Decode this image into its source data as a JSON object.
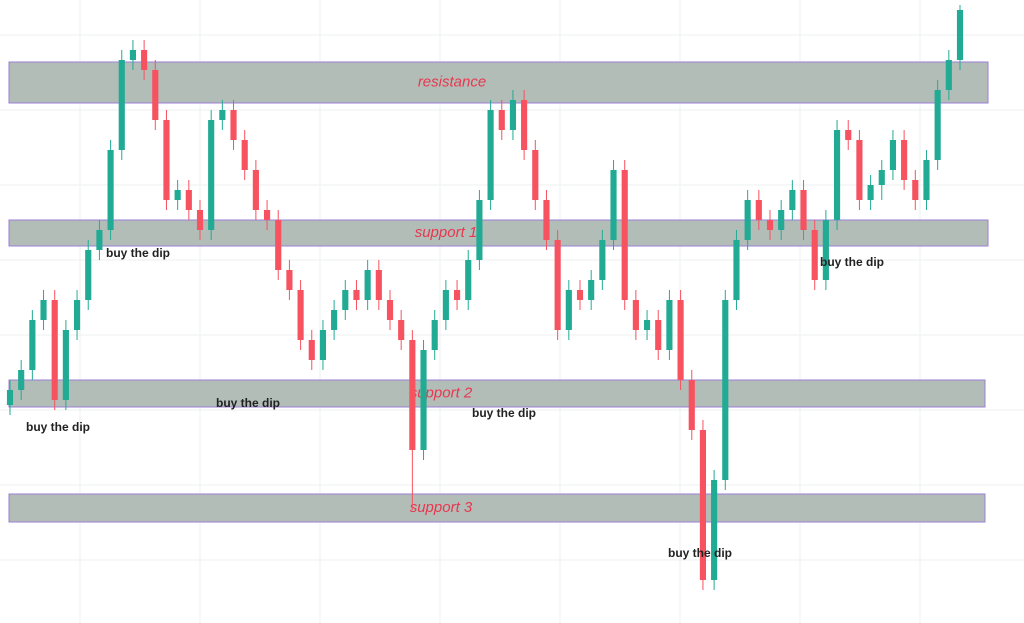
{
  "chart_data": {
    "type": "candlestick",
    "up_color": "#22ab94",
    "down_color": "#f7525f",
    "zone_color": "#b2bdb8",
    "zone_border": "#9c7fd6",
    "label_color": "#e8384f",
    "ylim": [
      0,
      620
    ],
    "open": [
      215,
      230,
      250,
      300,
      320,
      220,
      290,
      320,
      370,
      390,
      470,
      560,
      570,
      550,
      500,
      420,
      430,
      410,
      390,
      500,
      510,
      480,
      450,
      410,
      400,
      350,
      330,
      280,
      260,
      290,
      310,
      330,
      320,
      350,
      320,
      300,
      280,
      170,
      270,
      300,
      330,
      320,
      360,
      420,
      510,
      490,
      520,
      470,
      420,
      380,
      290,
      330,
      320,
      340,
      380,
      450,
      320,
      290,
      300,
      270,
      320,
      240,
      190,
      40,
      140,
      320,
      380,
      420,
      400,
      390,
      410,
      430,
      390,
      340,
      400,
      490,
      480,
      420,
      435,
      450,
      480,
      440,
      420,
      460,
      530,
      560
    ],
    "high": [
      240,
      260,
      310,
      330,
      330,
      300,
      330,
      380,
      400,
      480,
      570,
      580,
      580,
      560,
      510,
      440,
      440,
      420,
      510,
      520,
      520,
      490,
      460,
      420,
      410,
      360,
      340,
      290,
      300,
      320,
      340,
      340,
      360,
      360,
      330,
      310,
      290,
      280,
      310,
      340,
      340,
      370,
      430,
      520,
      520,
      530,
      530,
      480,
      430,
      390,
      340,
      340,
      350,
      390,
      460,
      460,
      330,
      310,
      310,
      330,
      330,
      250,
      200,
      150,
      330,
      390,
      430,
      430,
      410,
      420,
      440,
      440,
      400,
      410,
      500,
      500,
      490,
      445,
      460,
      490,
      490,
      450,
      470,
      540,
      570,
      615
    ],
    "low": [
      205,
      220,
      240,
      290,
      210,
      210,
      280,
      310,
      360,
      380,
      460,
      550,
      540,
      490,
      410,
      410,
      400,
      380,
      380,
      490,
      470,
      440,
      400,
      390,
      340,
      320,
      270,
      250,
      250,
      280,
      300,
      310,
      310,
      310,
      290,
      270,
      110,
      160,
      260,
      290,
      310,
      310,
      350,
      410,
      480,
      480,
      460,
      410,
      370,
      280,
      280,
      310,
      310,
      330,
      370,
      310,
      280,
      280,
      260,
      260,
      230,
      180,
      30,
      30,
      130,
      310,
      370,
      390,
      380,
      380,
      400,
      380,
      330,
      330,
      390,
      470,
      410,
      410,
      420,
      440,
      430,
      410,
      410,
      450,
      520,
      550
    ],
    "close": [
      230,
      250,
      300,
      320,
      220,
      290,
      320,
      370,
      390,
      470,
      560,
      570,
      550,
      500,
      420,
      430,
      410,
      390,
      500,
      510,
      480,
      450,
      410,
      400,
      350,
      330,
      280,
      260,
      290,
      310,
      330,
      320,
      350,
      320,
      300,
      280,
      170,
      270,
      300,
      330,
      320,
      360,
      420,
      510,
      490,
      520,
      470,
      420,
      380,
      290,
      330,
      320,
      340,
      380,
      450,
      320,
      290,
      300,
      270,
      320,
      240,
      190,
      40,
      140,
      320,
      380,
      420,
      400,
      390,
      410,
      430,
      390,
      340,
      400,
      490,
      480,
      420,
      435,
      450,
      480,
      440,
      420,
      460,
      530,
      560,
      610
    ],
    "zones": [
      {
        "label": "resistance",
        "range": [
          517,
          558
        ]
      },
      {
        "label": "support 1",
        "range": [
          374,
          400
        ]
      },
      {
        "label": "support 2",
        "range": [
          213,
          240
        ]
      },
      {
        "label": "support 3",
        "range": [
          98,
          126
        ]
      }
    ],
    "annotations": [
      "buy the dip",
      "buy the dip",
      "buy the dip",
      "buy the dip",
      "buy the dip",
      "buy the dip"
    ]
  }
}
